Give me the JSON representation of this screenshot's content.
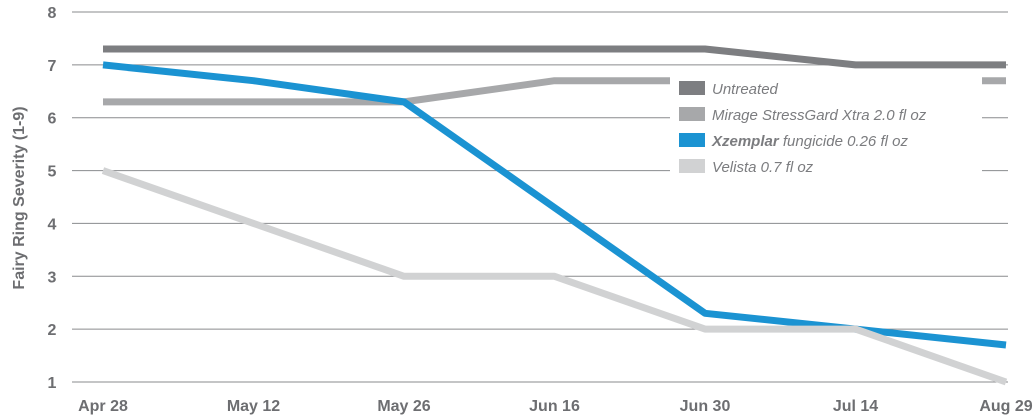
{
  "chart_data": {
    "type": "line",
    "ylabel": "Fairy Ring Severity (1-9)",
    "xlabel": "",
    "title": "",
    "categories": [
      "Apr 28",
      "May 12",
      "May 26",
      "Jun 16",
      "Jun 30",
      "Jul 14",
      "Aug 29"
    ],
    "yticks": [
      1,
      2,
      3,
      4,
      5,
      6,
      7,
      8
    ],
    "ylim": [
      1,
      8
    ],
    "grid": "horizontal",
    "legend_position": "right",
    "series": [
      {
        "name": "Untreated",
        "name_bold": "",
        "name_rest": "Untreated",
        "color": "#7d7e81",
        "values": [
          7.3,
          7.3,
          7.3,
          7.3,
          7.3,
          7.0,
          7.0
        ]
      },
      {
        "name": "Mirage StressGard Xtra 2.0 fl oz",
        "name_bold": "",
        "name_rest": "Mirage StressGard Xtra 2.0 fl oz",
        "color": "#a7a8aa",
        "values": [
          6.3,
          6.3,
          6.3,
          6.7,
          6.7,
          6.7,
          6.7
        ]
      },
      {
        "name": "Xzemplar fungicide 0.26 fl oz",
        "name_bold": "Xzemplar",
        "name_rest": " fungicide 0.26 fl oz",
        "color": "#1b93d2",
        "values": [
          7.0,
          6.7,
          6.3,
          4.3,
          2.3,
          2.0,
          1.7
        ]
      },
      {
        "name": "Velista 0.7 fl oz",
        "name_bold": "",
        "name_rest": "Velista 0.7 fl oz",
        "color": "#d1d2d3",
        "values": [
          5.0,
          4.0,
          3.0,
          3.0,
          2.0,
          2.0,
          1.0
        ]
      }
    ]
  }
}
